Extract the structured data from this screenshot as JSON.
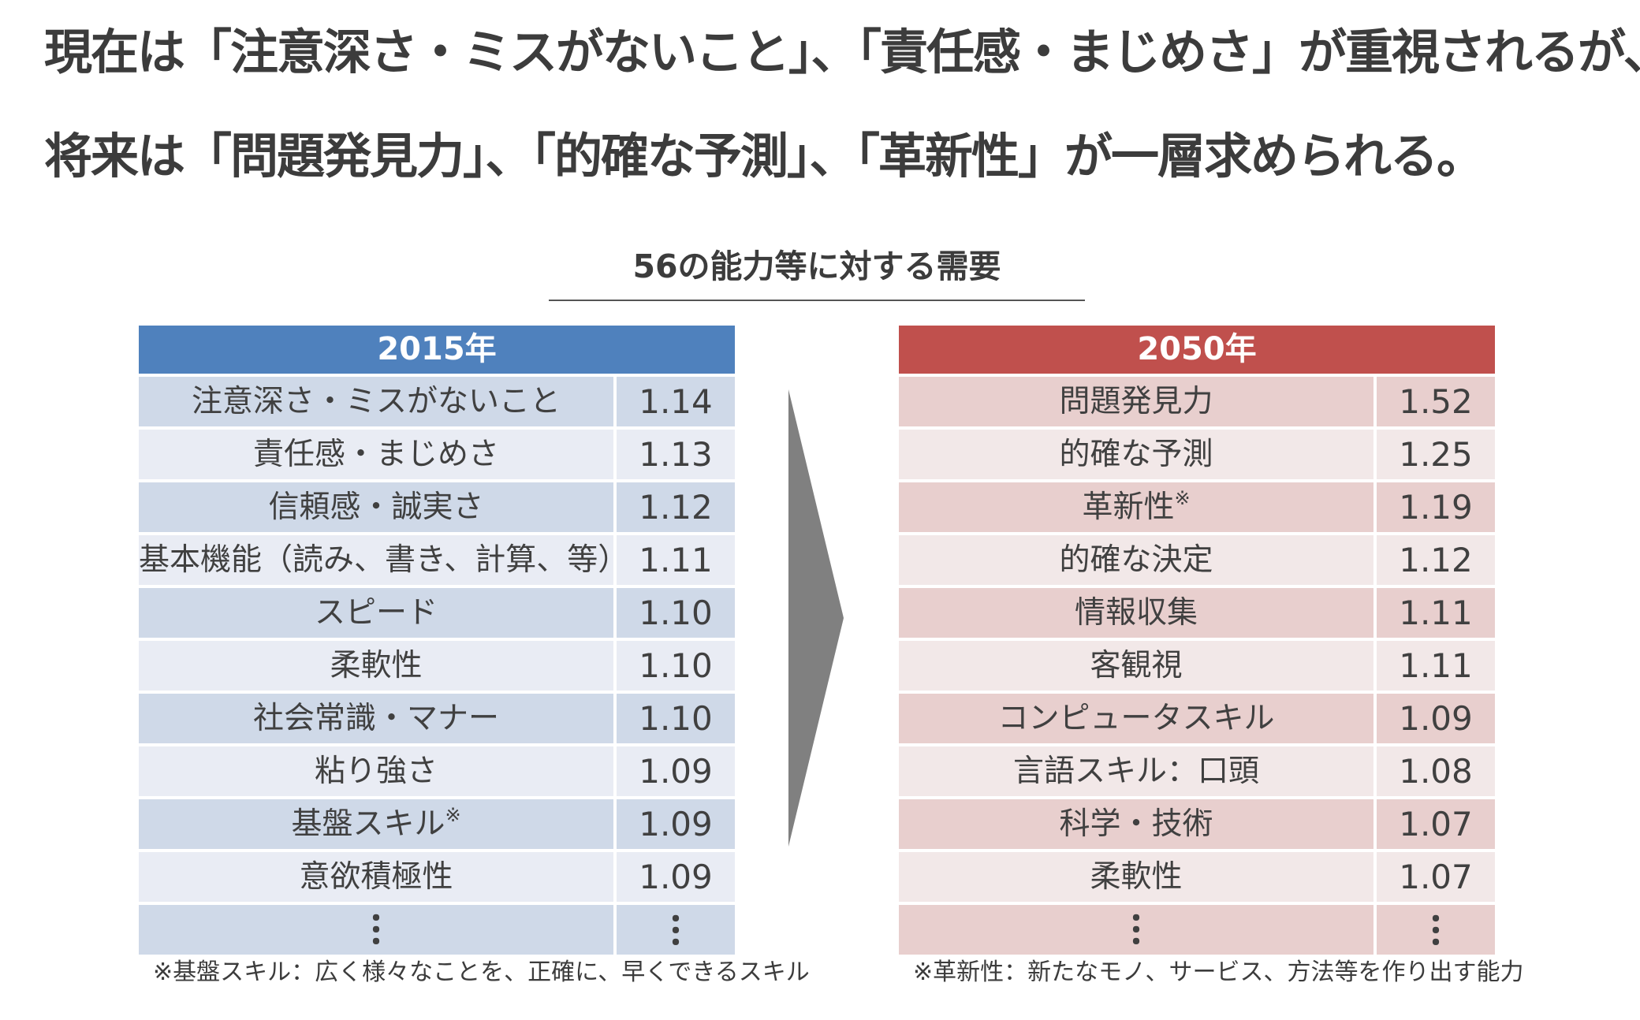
{
  "headline": {
    "line1": "現在は「注意深さ・ミスがないこと」、「責任感・まじめさ」が重視されるが、",
    "line2": "将来は「問題発見力」、「的確な予測」、「革新性」が一層求められる。"
  },
  "section": {
    "title": "56の能力等に対する需要"
  },
  "colors": {
    "header_2015": "#4f81bd",
    "header_2050": "#c0504d",
    "row_dark_2015": "#cfd9e8",
    "row_light_2015": "#e9ecf4",
    "row_dark_2050": "#e8cfce",
    "row_light_2050": "#f2e8e8",
    "arrow": "#808080"
  },
  "table_2015": {
    "header": "2015年",
    "rows": [
      {
        "label": "注意深さ・ミスがないこと",
        "value": "1.14"
      },
      {
        "label": "責任感・まじめさ",
        "value": "1.13"
      },
      {
        "label": "信頼感・誠実さ",
        "value": "1.12"
      },
      {
        "label": "基本機能（読み、書き、計算、等）",
        "value": "1.11"
      },
      {
        "label": "スピード",
        "value": "1.10"
      },
      {
        "label": "柔軟性",
        "value": "1.10"
      },
      {
        "label": "社会常識・マナー",
        "value": "1.10"
      },
      {
        "label": "粘り強さ",
        "value": "1.09"
      },
      {
        "label": "基盤スキル",
        "mark": "※",
        "value": "1.09"
      },
      {
        "label": "意欲積極性",
        "value": "1.09"
      },
      {
        "label": "・\n・\n・",
        "value": "・\n・\n・"
      }
    ],
    "footnote": "※基盤スキル：広く様々なことを、正確に、早くできるスキル"
  },
  "table_2050": {
    "header": "2050年",
    "rows": [
      {
        "label": "問題発見力",
        "value": "1.52"
      },
      {
        "label": "的確な予測",
        "value": "1.25"
      },
      {
        "label": "革新性",
        "mark": "※",
        "value": "1.19"
      },
      {
        "label": "的確な決定",
        "value": "1.12"
      },
      {
        "label": "情報収集",
        "value": "1.11"
      },
      {
        "label": "客観視",
        "value": "1.11"
      },
      {
        "label": "コンピュータスキル",
        "value": "1.09"
      },
      {
        "label": "言語スキル：口頭",
        "value": "1.08"
      },
      {
        "label": "科学・技術",
        "value": "1.07"
      },
      {
        "label": "柔軟性",
        "value": "1.07"
      },
      {
        "label": "・\n・\n・",
        "value": "・\n・\n・"
      }
    ],
    "footnote": "※革新性：新たなモノ、サービス、方法等を作り出す能力"
  }
}
